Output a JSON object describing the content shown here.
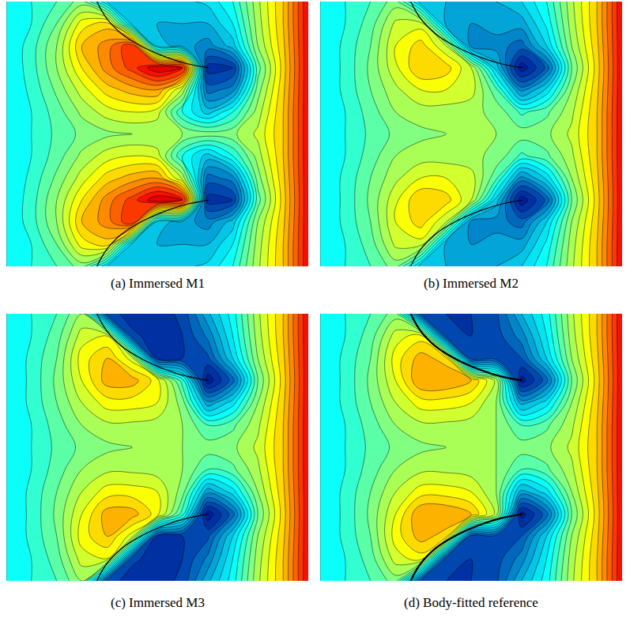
{
  "chart_data": [
    {
      "type": "contour",
      "title": "(a) Immersed M1",
      "color": "Jet",
      "tick_labels": false,
      "xlim": [
        0,
        1
      ],
      "ylim": [
        0,
        1
      ],
      "zlim": [
        0,
        1
      ],
      "level_step": 0.04,
      "x": [
        0,
        0.083,
        0.167,
        0.25,
        0.333,
        0.417,
        0.5,
        0.583,
        0.667,
        0.75,
        0.833,
        0.917,
        1
      ],
      "y": [
        0,
        0.083,
        0.167,
        0.25,
        0.333,
        0.417,
        0.5,
        0.583,
        0.667,
        0.75,
        0.833,
        0.917,
        1
      ],
      "z": [
        [
          0.36,
          0.4,
          0.44,
          0.5,
          0.32,
          0.3,
          0.3,
          0.31,
          0.33,
          0.4,
          0.55,
          0.68,
          0.88
        ],
        [
          0.36,
          0.4,
          0.48,
          0.62,
          0.66,
          0.3,
          0.28,
          0.28,
          0.28,
          0.36,
          0.54,
          0.68,
          0.88
        ],
        [
          0.36,
          0.42,
          0.52,
          0.68,
          0.74,
          0.84,
          0.3,
          0.26,
          0.22,
          0.3,
          0.52,
          0.67,
          0.88
        ],
        [
          0.36,
          0.42,
          0.52,
          0.64,
          0.74,
          0.82,
          0.92,
          0.88,
          0.1,
          0.12,
          0.46,
          0.66,
          0.88
        ],
        [
          0.36,
          0.41,
          0.49,
          0.58,
          0.66,
          0.7,
          0.72,
          0.55,
          0.18,
          0.22,
          0.5,
          0.67,
          0.88
        ],
        [
          0.36,
          0.4,
          0.46,
          0.53,
          0.58,
          0.6,
          0.58,
          0.4,
          0.3,
          0.4,
          0.54,
          0.68,
          0.88
        ],
        [
          0.36,
          0.4,
          0.45,
          0.49,
          0.51,
          0.52,
          0.52,
          0.52,
          0.5,
          0.51,
          0.57,
          0.68,
          0.88
        ],
        [
          0.36,
          0.4,
          0.46,
          0.53,
          0.58,
          0.6,
          0.58,
          0.4,
          0.3,
          0.4,
          0.54,
          0.68,
          0.88
        ],
        [
          0.36,
          0.41,
          0.49,
          0.58,
          0.66,
          0.7,
          0.72,
          0.55,
          0.18,
          0.22,
          0.5,
          0.67,
          0.88
        ],
        [
          0.36,
          0.42,
          0.52,
          0.64,
          0.74,
          0.82,
          0.92,
          0.88,
          0.1,
          0.12,
          0.46,
          0.66,
          0.88
        ],
        [
          0.36,
          0.42,
          0.52,
          0.68,
          0.74,
          0.84,
          0.3,
          0.26,
          0.22,
          0.3,
          0.52,
          0.67,
          0.88
        ],
        [
          0.36,
          0.4,
          0.48,
          0.62,
          0.66,
          0.3,
          0.28,
          0.28,
          0.28,
          0.36,
          0.54,
          0.68,
          0.88
        ],
        [
          0.36,
          0.4,
          0.44,
          0.5,
          0.32,
          0.3,
          0.3,
          0.31,
          0.33,
          0.4,
          0.55,
          0.68,
          0.88
        ]
      ],
      "plates": [
        {
          "x": [
            0.3,
            0.33,
            0.38,
            0.45,
            0.53,
            0.6,
            0.67
          ],
          "y": [
            1.0,
            0.94,
            0.88,
            0.83,
            0.79,
            0.765,
            0.75
          ]
        },
        {
          "x": [
            0.3,
            0.33,
            0.38,
            0.45,
            0.53,
            0.6,
            0.67
          ],
          "y": [
            0,
            0.06,
            0.12,
            0.17,
            0.21,
            0.235,
            0.25
          ]
        }
      ]
    },
    {
      "type": "contour",
      "title": "(b) Immersed M2",
      "color": "Jet",
      "tick_labels": false,
      "xlim": [
        0,
        1
      ],
      "ylim": [
        0,
        1
      ],
      "zlim": [
        0,
        1
      ],
      "level_step": 0.04,
      "x": [
        0,
        0.083,
        0.167,
        0.25,
        0.333,
        0.417,
        0.5,
        0.583,
        0.667,
        0.75,
        0.833,
        0.917,
        1
      ],
      "y": [
        0,
        0.083,
        0.167,
        0.25,
        0.333,
        0.417,
        0.5,
        0.583,
        0.667,
        0.75,
        0.833,
        0.917,
        1
      ],
      "z": [
        [
          0.36,
          0.4,
          0.44,
          0.5,
          0.3,
          0.28,
          0.27,
          0.28,
          0.32,
          0.4,
          0.55,
          0.68,
          0.88
        ],
        [
          0.36,
          0.4,
          0.46,
          0.57,
          0.58,
          0.26,
          0.24,
          0.26,
          0.26,
          0.37,
          0.54,
          0.68,
          0.88
        ],
        [
          0.36,
          0.41,
          0.48,
          0.6,
          0.66,
          0.56,
          0.22,
          0.22,
          0.18,
          0.32,
          0.52,
          0.67,
          0.88
        ],
        [
          0.36,
          0.41,
          0.49,
          0.59,
          0.68,
          0.66,
          0.56,
          0.3,
          0.05,
          0.17,
          0.48,
          0.66,
          0.88
        ],
        [
          0.36,
          0.41,
          0.48,
          0.55,
          0.6,
          0.6,
          0.58,
          0.45,
          0.22,
          0.33,
          0.52,
          0.67,
          0.88
        ],
        [
          0.36,
          0.4,
          0.46,
          0.52,
          0.54,
          0.54,
          0.53,
          0.51,
          0.43,
          0.47,
          0.55,
          0.68,
          0.88
        ],
        [
          0.36,
          0.4,
          0.45,
          0.49,
          0.51,
          0.52,
          0.52,
          0.52,
          0.5,
          0.51,
          0.57,
          0.68,
          0.88
        ],
        [
          0.36,
          0.4,
          0.46,
          0.52,
          0.54,
          0.54,
          0.53,
          0.51,
          0.43,
          0.47,
          0.55,
          0.68,
          0.88
        ],
        [
          0.36,
          0.41,
          0.48,
          0.55,
          0.6,
          0.6,
          0.58,
          0.45,
          0.22,
          0.33,
          0.52,
          0.67,
          0.88
        ],
        [
          0.36,
          0.41,
          0.49,
          0.59,
          0.68,
          0.66,
          0.56,
          0.3,
          0.05,
          0.17,
          0.48,
          0.66,
          0.88
        ],
        [
          0.36,
          0.41,
          0.48,
          0.6,
          0.66,
          0.56,
          0.22,
          0.22,
          0.18,
          0.32,
          0.52,
          0.67,
          0.88
        ],
        [
          0.36,
          0.4,
          0.46,
          0.57,
          0.58,
          0.26,
          0.24,
          0.26,
          0.26,
          0.37,
          0.54,
          0.68,
          0.88
        ],
        [
          0.36,
          0.4,
          0.44,
          0.5,
          0.3,
          0.28,
          0.27,
          0.28,
          0.32,
          0.4,
          0.55,
          0.68,
          0.88
        ]
      ],
      "plates": [
        {
          "x": [
            0.3,
            0.33,
            0.38,
            0.45,
            0.53,
            0.6,
            0.67
          ],
          "y": [
            1.0,
            0.94,
            0.88,
            0.83,
            0.79,
            0.765,
            0.75
          ]
        },
        {
          "x": [
            0.3,
            0.33,
            0.38,
            0.45,
            0.53,
            0.6,
            0.67
          ],
          "y": [
            0,
            0.06,
            0.12,
            0.17,
            0.21,
            0.235,
            0.25
          ]
        }
      ]
    },
    {
      "type": "contour",
      "title": "(c) Immersed M3",
      "color": "Jet",
      "tick_labels": false,
      "xlim": [
        0,
        1
      ],
      "ylim": [
        0,
        1
      ],
      "zlim": [
        0,
        1
      ],
      "level_step": 0.04,
      "x": [
        0,
        0.083,
        0.167,
        0.25,
        0.333,
        0.417,
        0.5,
        0.583,
        0.667,
        0.75,
        0.833,
        0.917,
        1
      ],
      "y": [
        0,
        0.083,
        0.167,
        0.25,
        0.333,
        0.417,
        0.5,
        0.583,
        0.667,
        0.75,
        0.833,
        0.917,
        1
      ],
      "z": [
        [
          0.36,
          0.4,
          0.44,
          0.52,
          0.14,
          0.1,
          0.1,
          0.13,
          0.27,
          0.38,
          0.55,
          0.68,
          0.88
        ],
        [
          0.36,
          0.4,
          0.46,
          0.58,
          0.6,
          0.13,
          0.1,
          0.12,
          0.21,
          0.36,
          0.54,
          0.68,
          0.88
        ],
        [
          0.36,
          0.41,
          0.48,
          0.62,
          0.68,
          0.58,
          0.12,
          0.12,
          0.15,
          0.32,
          0.52,
          0.67,
          0.88
        ],
        [
          0.36,
          0.41,
          0.49,
          0.6,
          0.7,
          0.7,
          0.62,
          0.42,
          0.05,
          0.18,
          0.48,
          0.66,
          0.88
        ],
        [
          0.36,
          0.41,
          0.48,
          0.56,
          0.62,
          0.62,
          0.6,
          0.5,
          0.25,
          0.34,
          0.52,
          0.67,
          0.88
        ],
        [
          0.36,
          0.4,
          0.46,
          0.52,
          0.55,
          0.55,
          0.54,
          0.52,
          0.44,
          0.47,
          0.55,
          0.68,
          0.88
        ],
        [
          0.36,
          0.4,
          0.45,
          0.49,
          0.51,
          0.52,
          0.52,
          0.52,
          0.5,
          0.51,
          0.57,
          0.68,
          0.88
        ],
        [
          0.36,
          0.4,
          0.46,
          0.52,
          0.55,
          0.55,
          0.54,
          0.52,
          0.44,
          0.47,
          0.55,
          0.68,
          0.88
        ],
        [
          0.36,
          0.41,
          0.48,
          0.56,
          0.62,
          0.62,
          0.6,
          0.5,
          0.25,
          0.34,
          0.52,
          0.67,
          0.88
        ],
        [
          0.36,
          0.41,
          0.49,
          0.6,
          0.7,
          0.7,
          0.62,
          0.42,
          0.05,
          0.18,
          0.48,
          0.66,
          0.88
        ],
        [
          0.36,
          0.41,
          0.48,
          0.62,
          0.68,
          0.58,
          0.12,
          0.12,
          0.15,
          0.32,
          0.52,
          0.67,
          0.88
        ],
        [
          0.36,
          0.4,
          0.46,
          0.58,
          0.6,
          0.13,
          0.1,
          0.12,
          0.21,
          0.36,
          0.54,
          0.68,
          0.88
        ],
        [
          0.36,
          0.4,
          0.44,
          0.52,
          0.14,
          0.1,
          0.1,
          0.13,
          0.27,
          0.38,
          0.55,
          0.68,
          0.88
        ]
      ],
      "plates": [
        {
          "x": [
            0.3,
            0.33,
            0.38,
            0.45,
            0.53,
            0.6,
            0.67
          ],
          "y": [
            1.0,
            0.94,
            0.88,
            0.83,
            0.79,
            0.765,
            0.75
          ]
        },
        {
          "x": [
            0.3,
            0.33,
            0.38,
            0.45,
            0.53,
            0.6,
            0.67
          ],
          "y": [
            0,
            0.06,
            0.12,
            0.17,
            0.21,
            0.235,
            0.25
          ]
        }
      ]
    },
    {
      "type": "contour",
      "title": "(d) Body-fitted reference",
      "color": "Jet",
      "tick_labels": false,
      "xlim": [
        0,
        1
      ],
      "ylim": [
        0,
        1
      ],
      "zlim": [
        0,
        1
      ],
      "level_step": 0.04,
      "x": [
        0,
        0.083,
        0.167,
        0.25,
        0.333,
        0.417,
        0.5,
        0.583,
        0.667,
        0.75,
        0.833,
        0.917,
        1
      ],
      "y": [
        0,
        0.083,
        0.167,
        0.25,
        0.333,
        0.417,
        0.5,
        0.583,
        0.667,
        0.75,
        0.833,
        0.917,
        1
      ],
      "z": [
        [
          0.36,
          0.4,
          0.44,
          0.5,
          0.15,
          0.12,
          0.12,
          0.15,
          0.28,
          0.38,
          0.55,
          0.68,
          0.88
        ],
        [
          0.36,
          0.4,
          0.46,
          0.58,
          0.62,
          0.14,
          0.12,
          0.14,
          0.22,
          0.36,
          0.54,
          0.68,
          0.88
        ],
        [
          0.36,
          0.41,
          0.48,
          0.62,
          0.7,
          0.66,
          0.14,
          0.14,
          0.16,
          0.32,
          0.52,
          0.67,
          0.88
        ],
        [
          0.36,
          0.41,
          0.49,
          0.6,
          0.72,
          0.72,
          0.68,
          0.55,
          0.06,
          0.18,
          0.48,
          0.66,
          0.88
        ],
        [
          0.36,
          0.41,
          0.48,
          0.56,
          0.62,
          0.62,
          0.6,
          0.52,
          0.26,
          0.34,
          0.52,
          0.67,
          0.88
        ],
        [
          0.36,
          0.4,
          0.46,
          0.52,
          0.55,
          0.55,
          0.54,
          0.52,
          0.44,
          0.47,
          0.55,
          0.68,
          0.88
        ],
        [
          0.36,
          0.4,
          0.45,
          0.49,
          0.51,
          0.52,
          0.52,
          0.52,
          0.5,
          0.51,
          0.57,
          0.68,
          0.88
        ],
        [
          0.36,
          0.4,
          0.46,
          0.52,
          0.55,
          0.55,
          0.54,
          0.52,
          0.44,
          0.47,
          0.55,
          0.68,
          0.88
        ],
        [
          0.36,
          0.41,
          0.48,
          0.56,
          0.62,
          0.62,
          0.6,
          0.52,
          0.26,
          0.34,
          0.52,
          0.67,
          0.88
        ],
        [
          0.36,
          0.41,
          0.49,
          0.6,
          0.72,
          0.72,
          0.68,
          0.55,
          0.06,
          0.18,
          0.48,
          0.66,
          0.88
        ],
        [
          0.36,
          0.41,
          0.48,
          0.62,
          0.7,
          0.66,
          0.14,
          0.14,
          0.16,
          0.32,
          0.52,
          0.67,
          0.88
        ],
        [
          0.36,
          0.4,
          0.46,
          0.58,
          0.62,
          0.14,
          0.12,
          0.14,
          0.22,
          0.36,
          0.54,
          0.68,
          0.88
        ],
        [
          0.36,
          0.4,
          0.44,
          0.5,
          0.15,
          0.12,
          0.12,
          0.15,
          0.28,
          0.38,
          0.55,
          0.68,
          0.88
        ]
      ],
      "plates": [
        {
          "x": [
            0.3,
            0.33,
            0.38,
            0.45,
            0.53,
            0.6,
            0.67
          ],
          "y": [
            1.0,
            0.94,
            0.88,
            0.83,
            0.79,
            0.765,
            0.75
          ]
        },
        {
          "x": [
            0.3,
            0.33,
            0.38,
            0.45,
            0.53,
            0.6,
            0.67
          ],
          "y": [
            0,
            0.06,
            0.12,
            0.17,
            0.21,
            0.235,
            0.25
          ]
        }
      ]
    }
  ]
}
